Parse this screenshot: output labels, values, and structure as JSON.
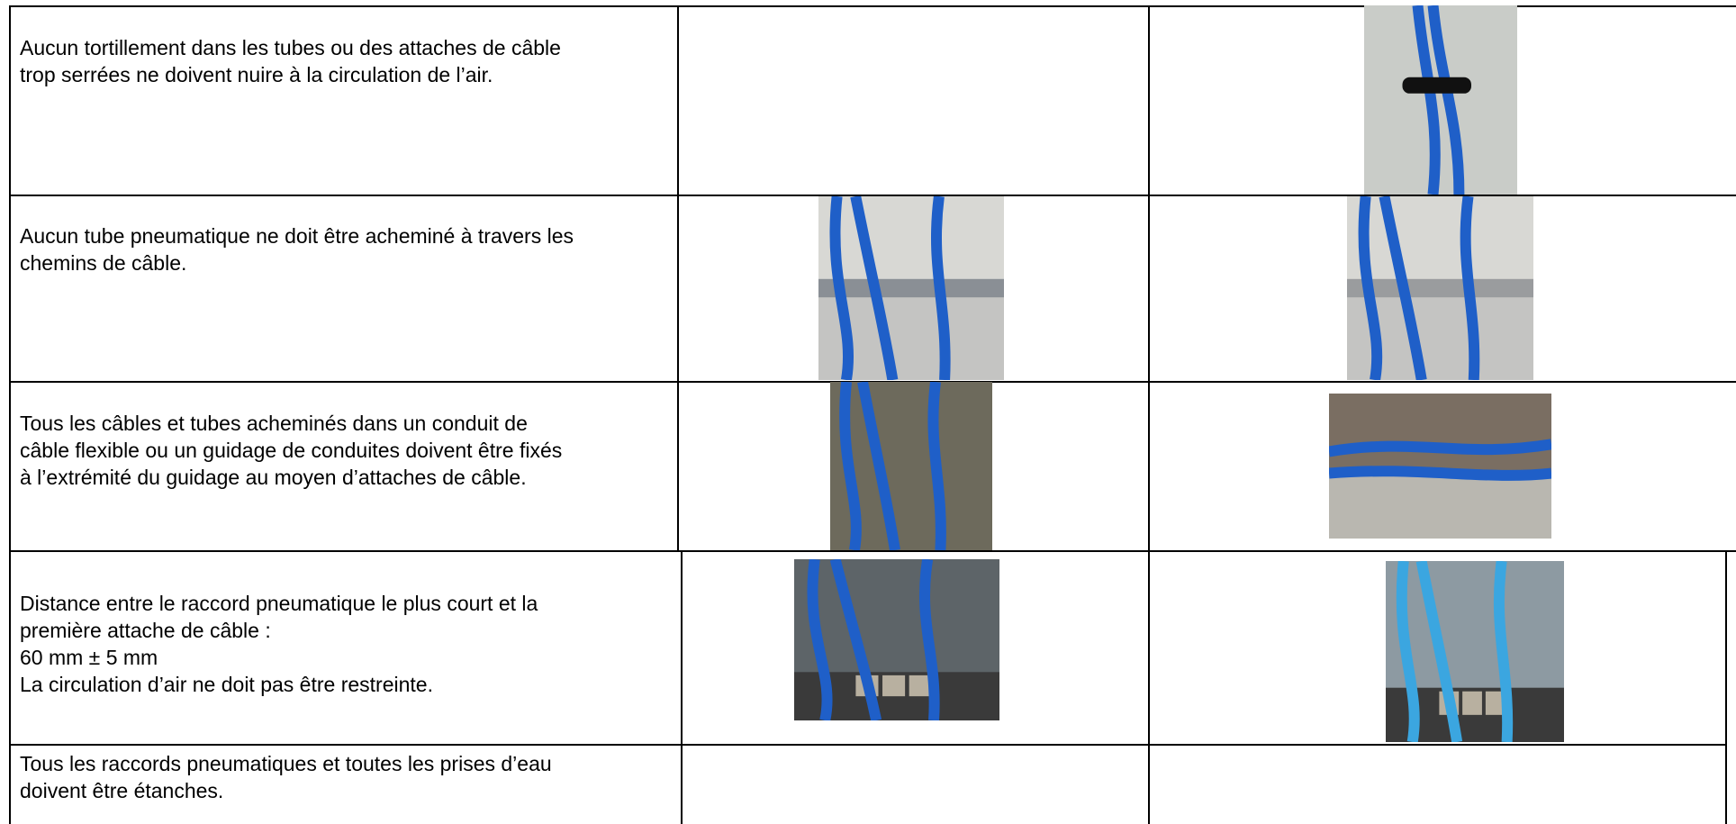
{
  "rows": [
    {
      "lines": [
        "Aucun tortillement dans les tubes ou des attaches de câble",
        "trop serrées ne doivent nuire à la circulation de l’air."
      ]
    },
    {
      "lines": [
        "Aucun tube pneumatique ne doit être acheminé à travers les",
        "chemins de câble."
      ]
    },
    {
      "lines": [
        "Tous les câbles et tubes acheminés dans un conduit de",
        "câble flexible ou un guidage de conduites doivent être fixés",
        "à l’extrémité du guidage au moyen d’attaches de câble."
      ]
    },
    {
      "lines": [
        "Distance entre le raccord pneumatique le plus court et la",
        "première attache de câble :",
        "60 mm ± 5 mm",
        "La circulation d’air ne doit pas être restreinte."
      ]
    },
    {
      "lines": [
        "Tous les raccords pneumatiques et toutes les prises d’eau",
        "doivent être étanches."
      ]
    }
  ]
}
